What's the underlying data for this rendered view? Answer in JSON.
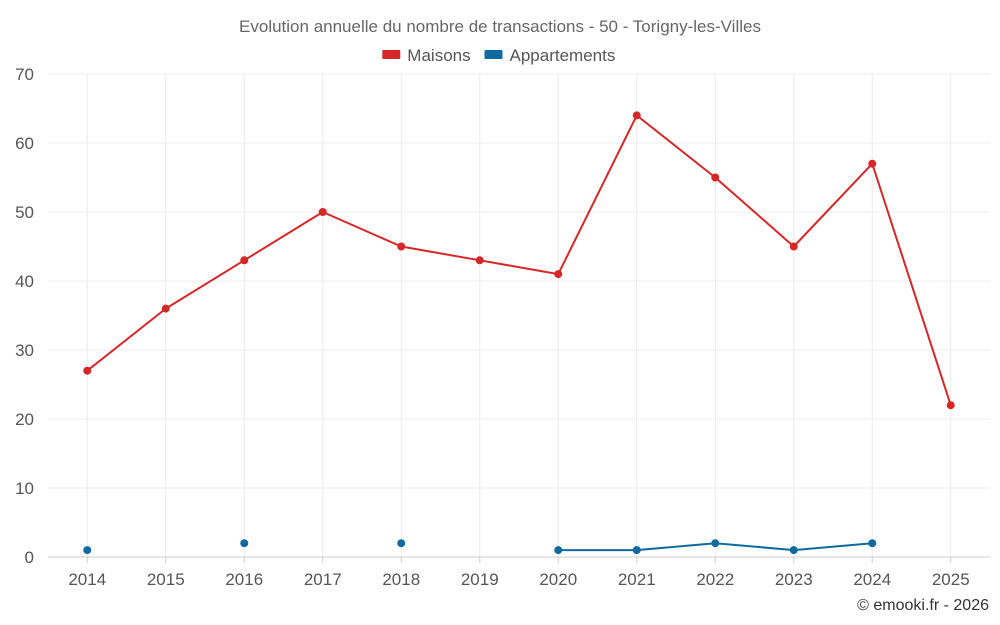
{
  "chart_data": {
    "type": "line",
    "title": "Evolution annuelle du nombre de transactions - 50 - Torigny-les-Villes",
    "categories": [
      "2014",
      "2015",
      "2016",
      "2017",
      "2018",
      "2019",
      "2020",
      "2021",
      "2022",
      "2023",
      "2024",
      "2025"
    ],
    "ylim": [
      0,
      70
    ],
    "yticks": [
      0,
      10,
      20,
      30,
      40,
      50,
      60,
      70
    ],
    "grid": true,
    "legend_position": "top-center",
    "series": [
      {
        "name": "Maisons",
        "color": "#d62728",
        "values": [
          27,
          36,
          43,
          50,
          45,
          43,
          41,
          64,
          55,
          45,
          57,
          22
        ]
      },
      {
        "name": "Appartements",
        "color": "#0f6aa0",
        "values": [
          1,
          null,
          2,
          null,
          2,
          null,
          1,
          1,
          2,
          1,
          2,
          null
        ]
      }
    ]
  },
  "credit": "© emooki.fr - 2026"
}
